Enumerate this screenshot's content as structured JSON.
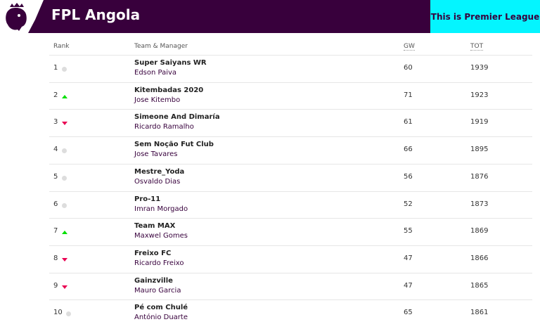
{
  "header": {
    "title": "FPL Angola",
    "brand_link": "This is Premier League"
  },
  "columns": {
    "rank": "Rank",
    "team": "Team & Manager",
    "gw": "GW",
    "tot": "TOT"
  },
  "colors": {
    "purple": "#38003c",
    "cyan": "#04f5ff",
    "up": "#01e000",
    "down": "#e90052",
    "same": "#dddddd"
  },
  "rows": [
    {
      "rank": "1",
      "move": "same",
      "team": "Super Saiyans WR",
      "manager": "Edson Paiva",
      "gw": "60",
      "tot": "1939"
    },
    {
      "rank": "2",
      "move": "up",
      "team": "Kitembadas 2020",
      "manager": "Jose Kitembo",
      "gw": "71",
      "tot": "1923"
    },
    {
      "rank": "3",
      "move": "down",
      "team": "Simeone And Dimaría",
      "manager": "Ricardo Ramalho",
      "gw": "61",
      "tot": "1919"
    },
    {
      "rank": "4",
      "move": "same",
      "team": "Sem Noção Fut Club",
      "manager": "Jose Tavares",
      "gw": "66",
      "tot": "1895"
    },
    {
      "rank": "5",
      "move": "same",
      "team": "Mestre_Yoda",
      "manager": "Osvaldo Dias",
      "gw": "56",
      "tot": "1876"
    },
    {
      "rank": "6",
      "move": "same",
      "team": "Pro-11",
      "manager": "Imran Morgado",
      "gw": "52",
      "tot": "1873"
    },
    {
      "rank": "7",
      "move": "up",
      "team": "Team MAX",
      "manager": "Maxwel Gomes",
      "gw": "55",
      "tot": "1869"
    },
    {
      "rank": "8",
      "move": "down",
      "team": "Freixo FC",
      "manager": "Ricardo Freixo",
      "gw": "47",
      "tot": "1866"
    },
    {
      "rank": "9",
      "move": "down",
      "team": "Gainzville",
      "manager": "Mauro Garcia",
      "gw": "47",
      "tot": "1865"
    },
    {
      "rank": "10",
      "move": "same",
      "team": "Pé com Chulé",
      "manager": "António Duarte",
      "gw": "65",
      "tot": "1861"
    }
  ]
}
